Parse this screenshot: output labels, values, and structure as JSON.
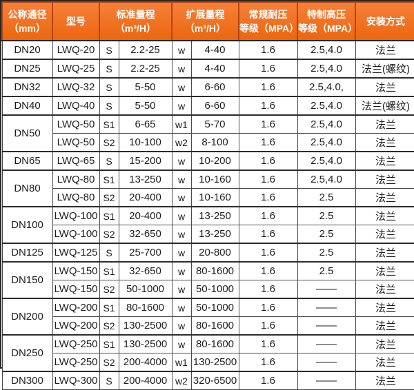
{
  "headers": {
    "nominal": [
      "公称通径",
      "（mm）"
    ],
    "model": "型号",
    "standard": [
      "标准量程",
      "（m³/H）"
    ],
    "extended": [
      "扩展量程",
      "（m³/H）"
    ],
    "normal_pressure": [
      "常规耐压",
      "等级（MPA）"
    ],
    "high_pressure": [
      "特制高压",
      "等级（MPA）"
    ],
    "installation": "安装方式"
  },
  "groups": [
    {
      "dn": "DN20",
      "rows": [
        {
          "model": "LWQ-20",
          "s": "S",
          "std": "2.2-25",
          "w": "w",
          "ext": "4-40",
          "pn": "1.6",
          "hp": "2.5,4.0",
          "inst": "法兰"
        }
      ]
    },
    {
      "dn": "DN25",
      "rows": [
        {
          "model": "LWQ-25",
          "s": "S",
          "std": "2.2-25",
          "w": "w",
          "ext": "4-40",
          "pn": "1.6",
          "hp": "2.5,4.0",
          "inst": "法兰(螺纹)"
        }
      ]
    },
    {
      "dn": "DN32",
      "rows": [
        {
          "model": "LWQ-32",
          "s": "S",
          "std": "5-50",
          "w": "w",
          "ext": "6-60",
          "pn": "1.6",
          "hp": "2.5,4.0,",
          "inst": "法兰"
        }
      ]
    },
    {
      "dn": "DN40",
      "rows": [
        {
          "model": "LWQ-40",
          "s": "S",
          "std": "5-50",
          "w": "w",
          "ext": "6-60",
          "pn": "1.6",
          "hp": "2.5,4.0",
          "inst": "法兰(螺纹)"
        }
      ]
    },
    {
      "dn": "DN50",
      "rows": [
        {
          "model": "LWQ-50",
          "s": "S1",
          "std": "6-65",
          "w": "w1",
          "ext": "5-70",
          "pn": "1.6",
          "hp": "2.5,4.0",
          "inst": "法兰"
        },
        {
          "model": "LWQ-50",
          "s": "S2",
          "std": "10-100",
          "w": "w2",
          "ext": "8-100",
          "pn": "1.6",
          "hp": "2.5,4.0",
          "inst": "法兰"
        }
      ]
    },
    {
      "dn": "DN65",
      "rows": [
        {
          "model": "LWQ-65",
          "s": "S",
          "std": "15-200",
          "w": "w",
          "ext": "10-200",
          "pn": "1.6",
          "hp": "2.5,4.0",
          "inst": "法兰"
        }
      ]
    },
    {
      "dn": "DN80",
      "rows": [
        {
          "model": "LWQ-80",
          "s": "S1",
          "std": "13-250",
          "w": "w",
          "ext": "10-160",
          "pn": "1.6",
          "hp": "2.5,4.0",
          "inst": "法兰"
        },
        {
          "model": "LWQ-80",
          "s": "S2",
          "std": "20-400",
          "w": "w",
          "ext": "10-160",
          "pn": "1.6",
          "hp": "2.5",
          "inst": "法兰"
        }
      ]
    },
    {
      "dn": "DN100",
      "rows": [
        {
          "model": "LWQ-100",
          "s": "S1",
          "std": "20-400",
          "w": "w",
          "ext": "13-250",
          "pn": "1.6",
          "hp": "2.5",
          "inst": "法兰"
        },
        {
          "model": "LWQ-100",
          "s": "S2",
          "std": "32-650",
          "w": "w",
          "ext": "13-250",
          "pn": "1.6",
          "hp": "2.5",
          "inst": "法兰"
        }
      ]
    },
    {
      "dn": "DN125",
      "rows": [
        {
          "model": "LWQ-125",
          "s": "S",
          "std": "25-700",
          "w": "w",
          "ext": "20-800",
          "pn": "1.6",
          "hp": "2.5",
          "inst": "法兰"
        }
      ]
    },
    {
      "dn": "DN150",
      "rows": [
        {
          "model": "LWQ-150",
          "s": "S1",
          "std": "32-650",
          "w": "w",
          "ext": "80-1600",
          "pn": "1.6",
          "hp": "2.5",
          "inst": "法兰"
        },
        {
          "model": "LWQ-150",
          "s": "S2",
          "std": "50-1000",
          "w": "w",
          "ext": "50-1000",
          "pn": "1.6",
          "hp": "——",
          "inst": "法兰"
        }
      ]
    },
    {
      "dn": "DN200",
      "rows": [
        {
          "model": "LWQ-200",
          "s": "S1",
          "std": "80-1600",
          "w": "w",
          "ext": "50-1000",
          "pn": "1.6",
          "hp": "——",
          "inst": "法兰"
        },
        {
          "model": "LWQ-200",
          "s": "S2",
          "std": "130-2500",
          "w": "w",
          "ext": "80-1600",
          "pn": "1.6",
          "hp": "——",
          "inst": "法兰"
        }
      ]
    },
    {
      "dn": "DN250",
      "rows": [
        {
          "model": "LWQ-250",
          "s": "S1",
          "std": "130-2500",
          "w": "w",
          "ext": "80-1600",
          "pn": "1.6",
          "hp": "——",
          "inst": "法兰"
        },
        {
          "model": "LWQ-250",
          "s": "S2",
          "std": "200-4000",
          "w": "w1",
          "ext": "130-2500",
          "pn": "1.6",
          "hp": "——",
          "inst": "法兰"
        }
      ]
    },
    {
      "dn": "DN300",
      "rows": [
        {
          "model": "LWQ-300",
          "s": "S",
          "std": "200-4000",
          "w": "w2",
          "ext": "320-6500",
          "pn": "1.6",
          "hp": "——",
          "inst": "法兰"
        }
      ]
    }
  ],
  "colors": {
    "header_bg_top": "#f5803a",
    "header_bg_bottom": "#ec660f",
    "header_border": "#b8430a",
    "header_text": "#ffffff",
    "outer_border": "#262626",
    "grid_line": "#4a4a4a",
    "group_line": "#2b2b2b",
    "body_text": "#1c1c1c",
    "body_bg": "#ffffff"
  }
}
